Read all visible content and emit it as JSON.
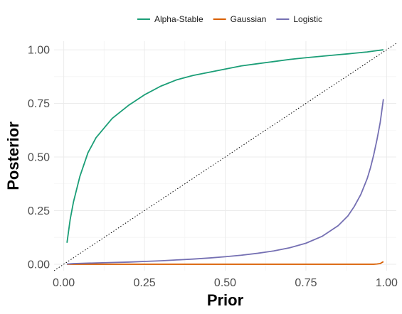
{
  "chart_data": {
    "type": "line",
    "xlabel": "Prior",
    "ylabel": "Posterior",
    "xlim": [
      -0.03,
      1.03
    ],
    "ylim": [
      -0.03,
      1.04
    ],
    "x_ticks": [
      "0.00",
      "0.25",
      "0.50",
      "0.75",
      "1.00"
    ],
    "y_ticks": [
      "0.00",
      "0.25",
      "0.50",
      "0.75",
      "1.00"
    ],
    "grid": true,
    "legend_position": "top",
    "reference_line": {
      "type": "diagonal",
      "style": "dotted",
      "color": "#000000"
    },
    "x": [
      0.01,
      0.02,
      0.03,
      0.05,
      0.075,
      0.1,
      0.15,
      0.2,
      0.25,
      0.3,
      0.35,
      0.4,
      0.45,
      0.5,
      0.55,
      0.6,
      0.65,
      0.7,
      0.75,
      0.8,
      0.85,
      0.88,
      0.9,
      0.92,
      0.94,
      0.95,
      0.96,
      0.97,
      0.98,
      0.99
    ],
    "series": [
      {
        "name": "Alpha-Stable",
        "color": "#1b9e77",
        "values": [
          0.1,
          0.21,
          0.29,
          0.41,
          0.52,
          0.59,
          0.68,
          0.74,
          0.79,
          0.83,
          0.86,
          0.88,
          0.895,
          0.91,
          0.925,
          0.935,
          0.945,
          0.955,
          0.963,
          0.97,
          0.977,
          0.981,
          0.984,
          0.987,
          0.99,
          0.992,
          0.994,
          0.996,
          0.998,
          1.0
        ]
      },
      {
        "name": "Gaussian",
        "color": "#d95f02",
        "values": [
          0.0,
          0.0,
          0.0,
          0.0,
          0.0,
          0.0,
          0.0,
          0.0,
          0.0,
          0.0,
          0.0,
          0.0,
          0.0,
          0.0,
          0.0,
          0.0,
          0.0,
          0.0,
          0.0,
          0.0,
          0.0,
          0.0,
          0.0,
          0.0,
          0.0,
          0.0,
          0.0,
          0.001,
          0.003,
          0.012
        ]
      },
      {
        "name": "Logistic",
        "color": "#7570b3",
        "values": [
          0.001,
          0.002,
          0.003,
          0.004,
          0.005,
          0.006,
          0.008,
          0.01,
          0.013,
          0.016,
          0.02,
          0.024,
          0.029,
          0.035,
          0.042,
          0.051,
          0.062,
          0.077,
          0.098,
          0.13,
          0.18,
          0.225,
          0.27,
          0.325,
          0.4,
          0.45,
          0.51,
          0.58,
          0.66,
          0.77
        ]
      }
    ]
  }
}
